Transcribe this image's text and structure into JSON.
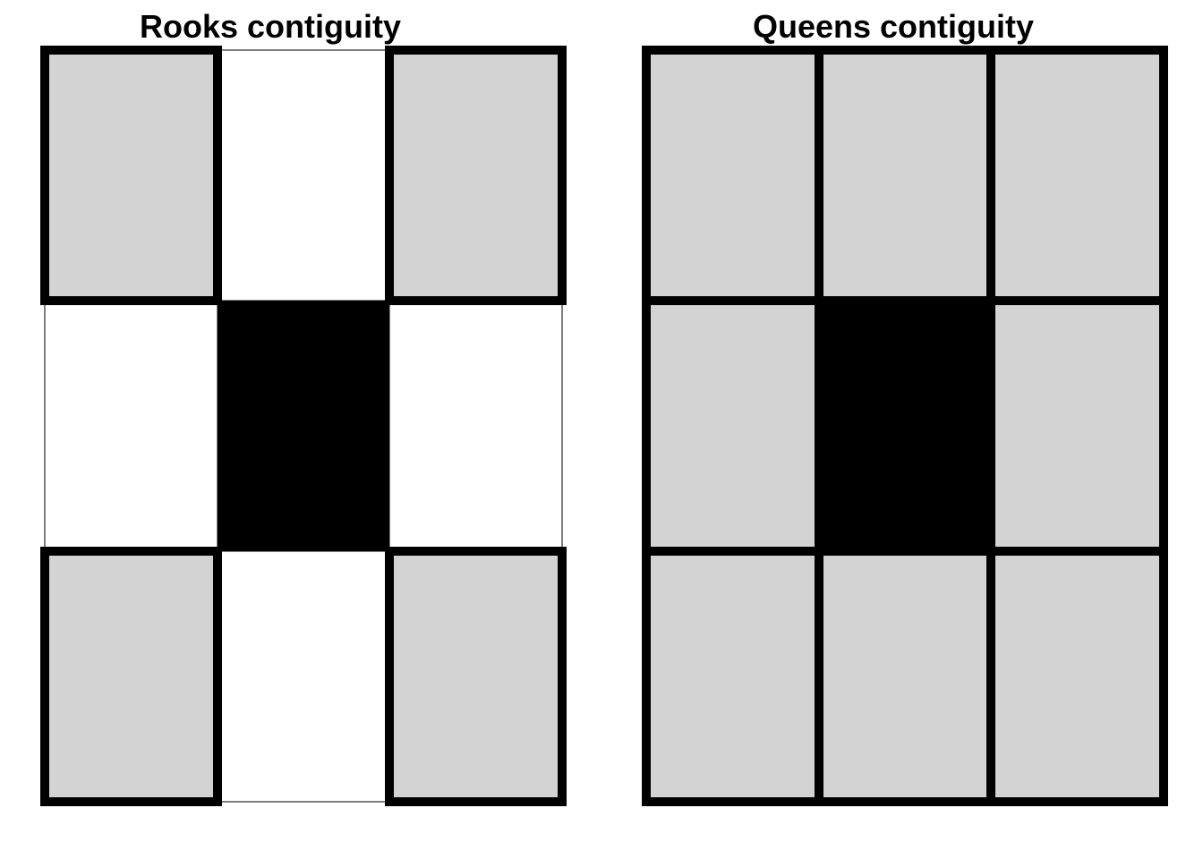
{
  "panels": {
    "rooks": {
      "title": "Rooks contiguity",
      "grid": [
        [
          "neighbor",
          "empty",
          "neighbor"
        ],
        [
          "empty",
          "focal",
          "empty"
        ],
        [
          "neighbor",
          "empty",
          "neighbor"
        ]
      ]
    },
    "queens": {
      "title": "Queens contiguity",
      "grid": [
        [
          "neighbor",
          "neighbor",
          "neighbor"
        ],
        [
          "neighbor",
          "focal",
          "neighbor"
        ],
        [
          "neighbor",
          "neighbor",
          "neighbor"
        ]
      ]
    }
  },
  "colors": {
    "neighbor": "#d3d3d3",
    "empty": "#ffffff",
    "focal": "#000000",
    "border": "#000000"
  }
}
